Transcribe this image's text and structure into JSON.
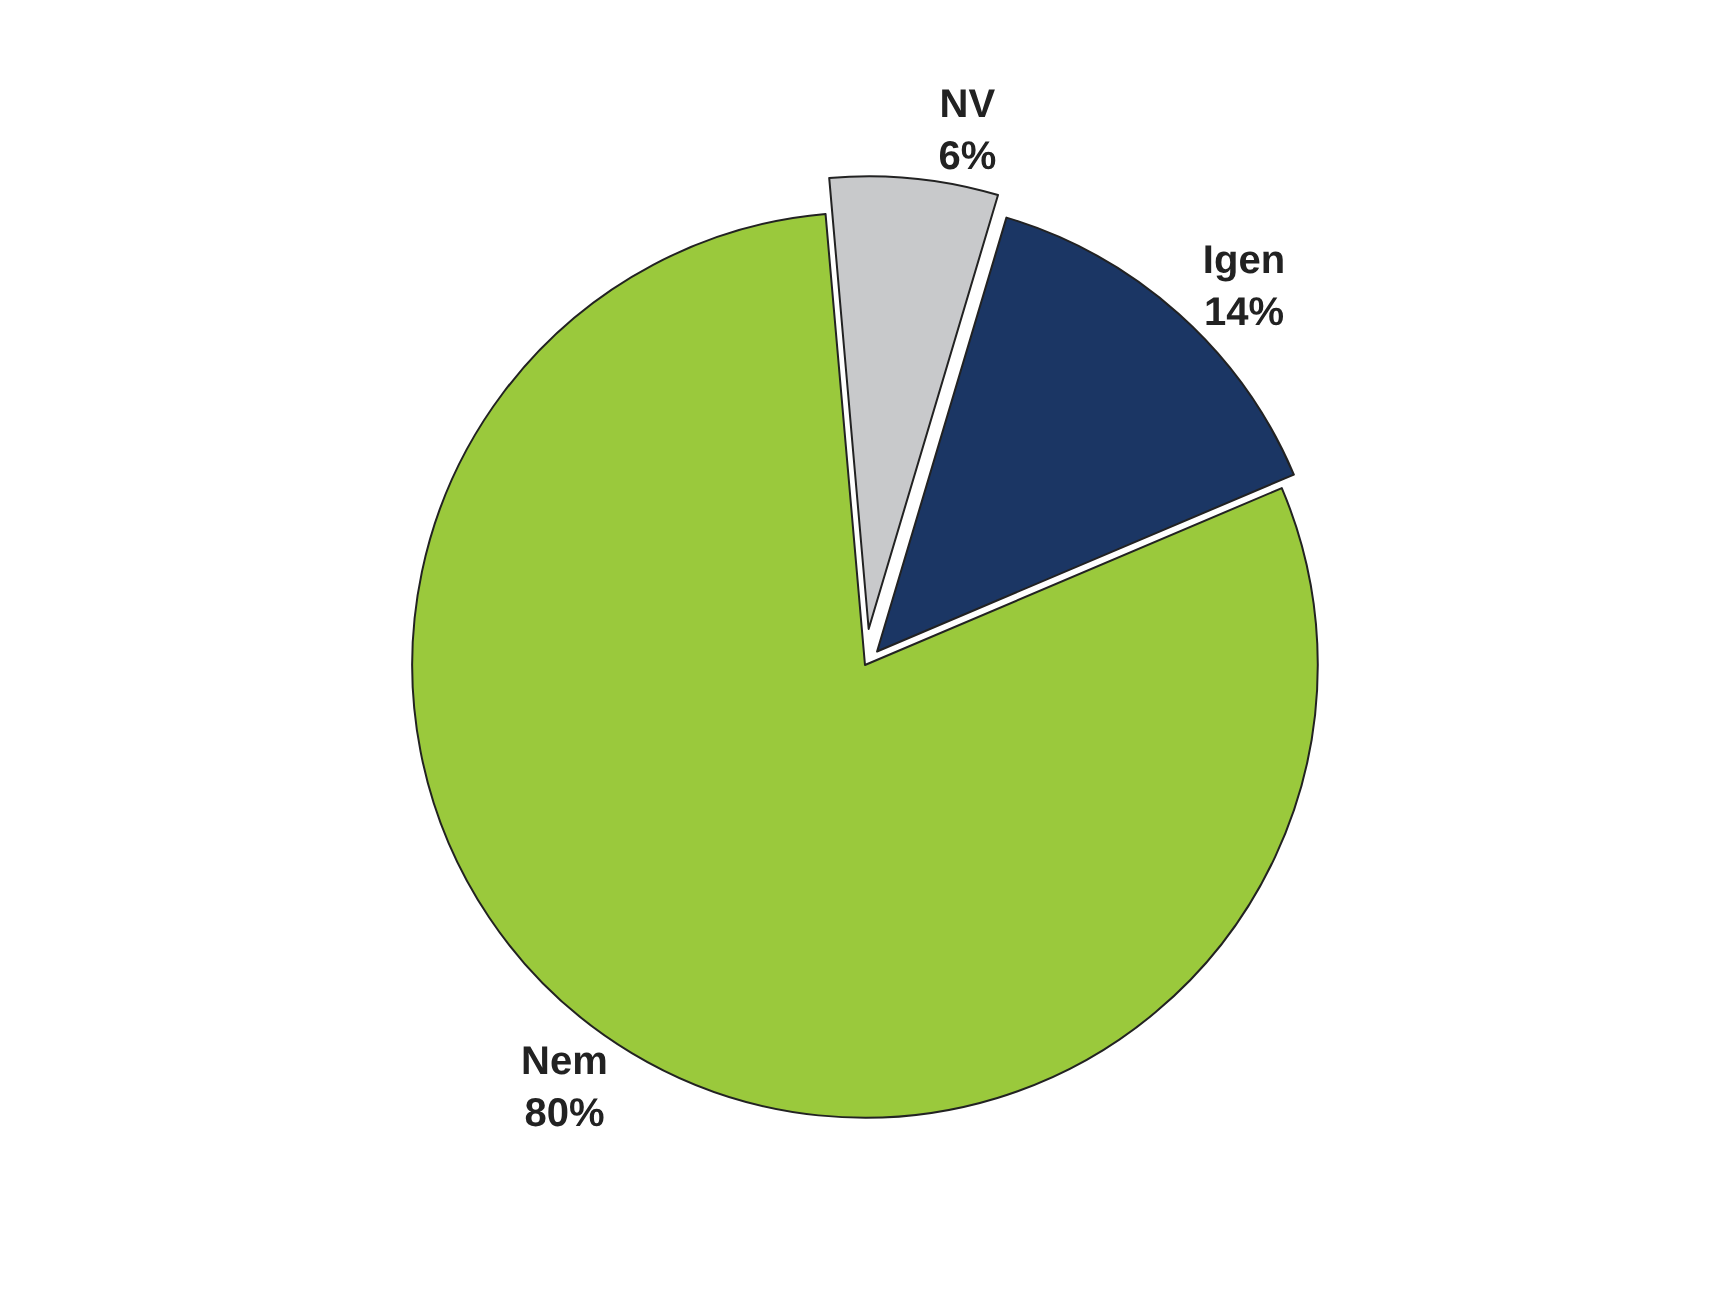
{
  "chart_data": {
    "type": "pie",
    "categories": [
      "NV",
      "Igen",
      "Nem"
    ],
    "values": [
      6,
      14,
      80
    ],
    "value_labels": [
      "6%",
      "14%",
      "80%"
    ],
    "colors": [
      "#c8c9cb",
      "#1b3664",
      "#9ac93c"
    ],
    "legend": false
  }
}
